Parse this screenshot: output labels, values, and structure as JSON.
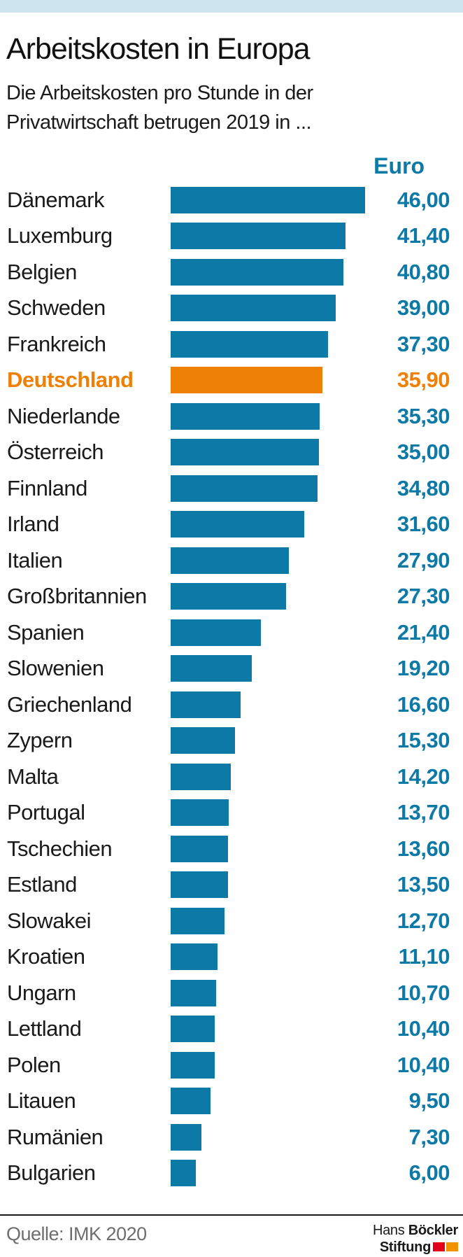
{
  "page": {
    "accent_blue": "#0D79A6",
    "highlight_orange": "#EE8006",
    "stripe_color": "#CEE5F0",
    "source_gray": "#6E6E6E",
    "background": "#FFFFFF"
  },
  "header": {
    "title": "Arbeitskosten in Europa",
    "subtitle_line1": "Die Arbeitskosten pro Stunde in der",
    "subtitle_line2": "Privatwirtschaft betrugen 2019 in ...",
    "unit_header": "Euro"
  },
  "chart_data": {
    "type": "bar",
    "orientation": "horizontal",
    "title": "Arbeitskosten in Europa",
    "subtitle": "Die Arbeitskosten pro Stunde in der Privatwirtschaft betrugen 2019 in ...",
    "unit": "Euro",
    "xlim": [
      0,
      46
    ],
    "grid": false,
    "legend": false,
    "highlight_category": "Deutschland",
    "highlight_color": "#EE8006",
    "bar_color": "#0D79A6",
    "categories": [
      "Dänemark",
      "Luxemburg",
      "Belgien",
      "Schweden",
      "Frankreich",
      "Deutschland",
      "Niederlande",
      "Österreich",
      "Finnland",
      "Irland",
      "Italien",
      "Großbritannien",
      "Spanien",
      "Slowenien",
      "Griechenland",
      "Zypern",
      "Malta",
      "Portugal",
      "Tschechien",
      "Estland",
      "Slowakei",
      "Kroatien",
      "Ungarn",
      "Lettland",
      "Polen",
      "Litauen",
      "Rumänien",
      "Bulgarien"
    ],
    "values": [
      46.0,
      41.4,
      40.8,
      39.0,
      37.3,
      35.9,
      35.3,
      35.0,
      34.8,
      31.6,
      27.9,
      27.3,
      21.4,
      19.2,
      16.6,
      15.3,
      14.2,
      13.7,
      13.6,
      13.5,
      12.7,
      11.1,
      10.7,
      10.4,
      10.4,
      9.5,
      7.3,
      6.0
    ],
    "value_labels": [
      "46,00",
      "41,40",
      "40,80",
      "39,00",
      "37,30",
      "35,90",
      "35,30",
      "35,00",
      "34,80",
      "31,60",
      "27,90",
      "27,30",
      "21,40",
      "19,20",
      "16,60",
      "15,30",
      "14,20",
      "13,70",
      "13,60",
      "13,50",
      "12,70",
      "11,10",
      "10,70",
      "10,40",
      "10,40",
      "9,50",
      "7,30",
      "6,00"
    ]
  },
  "footer": {
    "source": "Quelle: IMK 2020",
    "logo": {
      "word1": "Hans",
      "word2": "Böckler",
      "word3": "Stiftung",
      "square1_color": "#E2001A",
      "square2_color": "#F39200"
    }
  }
}
